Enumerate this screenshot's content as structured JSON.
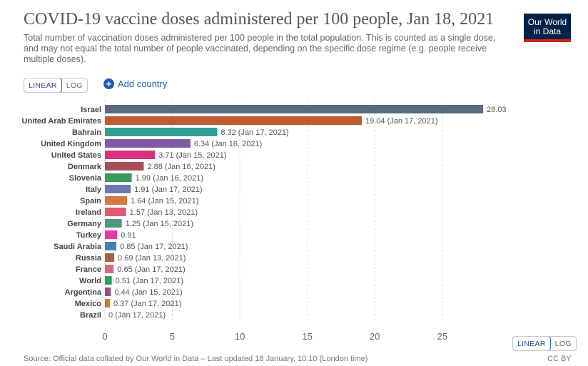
{
  "header": {
    "title": "COVID-19 vaccine doses administered per 100 people, Jan 18, 2021",
    "subtitle": "Total number of vaccination doses administered per 100 people in the total population. This is counted as a single dose, and may not equal the total number of people vaccinated, depending on the specific dose regime (e.g. people receive multiple doses).",
    "logo_line1": "Our World",
    "logo_line2": "in Data"
  },
  "controls": {
    "linear_label": "LINEAR",
    "log_label": "LOG",
    "add_country_label": "Add country",
    "plus_symbol": "+"
  },
  "footer": {
    "source": "Source: Official data collated by Our World in Data – Last updated 18 January, 10:10 (London time)",
    "license": "CC BY"
  },
  "colors": {
    "logo_bg": "#002147",
    "logo_accent": "#ce261e",
    "accent_blue": "#1a5fb4"
  },
  "chart_data": {
    "type": "bar",
    "orientation": "horizontal",
    "title": "COVID-19 vaccine doses administered per 100 people, Jan 18, 2021",
    "xlim": [
      0,
      28.03
    ],
    "xticks": [
      0,
      5,
      10,
      15,
      20,
      25
    ],
    "grid": true,
    "categories": [
      "Israel",
      "United Arab Emirates",
      "Bahrain",
      "United Kingdom",
      "United States",
      "Denmark",
      "Slovenia",
      "Italy",
      "Spain",
      "Ireland",
      "Germany",
      "Turkey",
      "Saudi Arabia",
      "Russia",
      "France",
      "World",
      "Argentina",
      "Mexico",
      "Brazil"
    ],
    "values": [
      28.03,
      19.04,
      8.32,
      6.34,
      3.71,
      2.88,
      1.99,
      1.91,
      1.64,
      1.57,
      1.25,
      0.91,
      0.85,
      0.69,
      0.65,
      0.51,
      0.44,
      0.37,
      0
    ],
    "labels": [
      "28.03",
      "19.04 (Jan 17, 2021)",
      "8.32 (Jan 17, 2021)",
      "6.34 (Jan 16, 2021)",
      "3.71 (Jan 15, 2021)",
      "2.88 (Jan 16, 2021)",
      "1.99 (Jan 16, 2021)",
      "1.91 (Jan 17, 2021)",
      "1.64 (Jan 15, 2021)",
      "1.57 (Jan 13, 2021)",
      "1.25 (Jan 15, 2021)",
      "0.91",
      "0.85 (Jan 17, 2021)",
      "0.69 (Jan 13, 2021)",
      "0.65 (Jan 17, 2021)",
      "0.51 (Jan 17, 2021)",
      "0.44 (Jan 15, 2021)",
      "0.37 (Jan 17, 2021)",
      "0 (Jan 17, 2021)"
    ],
    "colors": [
      "#5a6b80",
      "#c05a31",
      "#2f9e94",
      "#7f5ba6",
      "#d7327d",
      "#a64f58",
      "#3a9a5b",
      "#6b79b3",
      "#d57a3e",
      "#e05a72",
      "#4f9585",
      "#e23aa9",
      "#3b86b8",
      "#a8633a",
      "#de6a82",
      "#2f9e62",
      "#9a4f7f",
      "#c77c3a",
      "#8f6a5a"
    ]
  }
}
